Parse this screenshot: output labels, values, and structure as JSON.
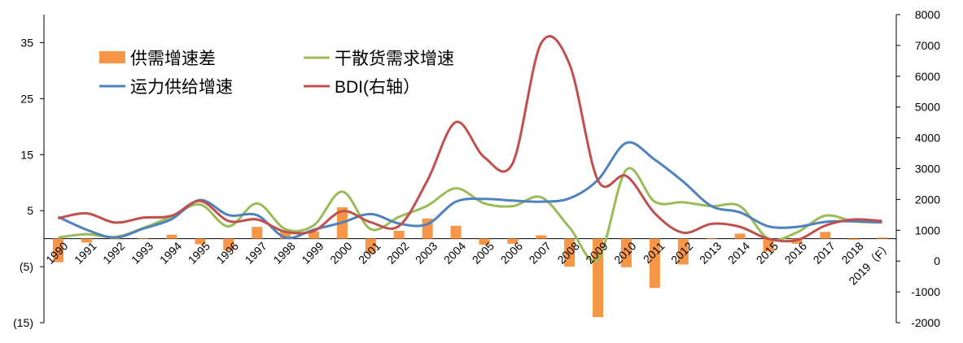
{
  "chart_data": {
    "type": "bar",
    "title": "",
    "categories": [
      "1990",
      "1991",
      "1992",
      "1993",
      "1994",
      "1995",
      "1996",
      "1997",
      "1998",
      "1999",
      "2000",
      "2001",
      "2002",
      "2003",
      "2004",
      "2005",
      "2006",
      "2007",
      "2008",
      "2009",
      "2010",
      "2011",
      "2012",
      "2013",
      "2014",
      "2015",
      "2016",
      "2017",
      "2018",
      "2019（F）"
    ],
    "left_axis": {
      "min": -15,
      "max": 40,
      "ticks": [
        -15,
        -5,
        5,
        15,
        25,
        35
      ],
      "tick_labels": [
        "(15)",
        "(5)",
        "5",
        "15",
        "25",
        "35"
      ]
    },
    "right_axis": {
      "min": -2000,
      "max": 8000,
      "ticks": [
        -2000,
        -1000,
        0,
        1000,
        2000,
        3000,
        4000,
        5000,
        6000,
        7000,
        8000
      ],
      "tick_labels": [
        "-2000",
        "-1000",
        "0",
        "1000",
        "2000",
        "3000",
        "4000",
        "5000",
        "6000",
        "7000",
        "8000"
      ]
    },
    "grid": false,
    "legend_position": "top-left",
    "series": [
      {
        "name": "供需增速差",
        "type": "bar",
        "axis": "left",
        "color": "#F79646",
        "values": [
          -4.2,
          -0.7,
          -0.1,
          0.1,
          0.7,
          -1.0,
          -2.1,
          2.1,
          1.4,
          1.3,
          5.6,
          -2.6,
          1.4,
          3.6,
          2.3,
          -1.1,
          -0.9,
          0.6,
          -5.0,
          -14.0,
          -5.1,
          -8.8,
          -4.6,
          0.1,
          0.9,
          -2.3,
          -0.9,
          1.2,
          -0.2,
          0.2
        ]
      },
      {
        "name": "干散货需求增速",
        "type": "line",
        "axis": "left",
        "color": "#9BBB59",
        "values": [
          0.2,
          0.8,
          0.3,
          1.9,
          4.0,
          6.1,
          2.2,
          6.3,
          1.7,
          2.4,
          8.4,
          1.7,
          3.9,
          5.9,
          9.0,
          6.3,
          5.8,
          7.4,
          2.0,
          -3.7,
          12.3,
          6.6,
          6.5,
          5.8,
          5.8,
          0.0,
          1.1,
          4.1,
          3.1,
          2.9
        ]
      },
      {
        "name": "运力供给增速",
        "type": "line",
        "axis": "left",
        "color": "#4F81BD",
        "values": [
          3.9,
          1.6,
          0.2,
          1.8,
          3.5,
          6.9,
          4.2,
          4.2,
          0.2,
          1.6,
          2.9,
          4.4,
          2.7,
          2.6,
          6.6,
          7.1,
          6.8,
          6.6,
          7.2,
          10.5,
          17.1,
          14.1,
          10.2,
          5.8,
          4.7,
          2.2,
          2.1,
          3.0,
          3.1,
          2.9
        ]
      },
      {
        "name": "BDI(右轴）",
        "type": "line",
        "axis": "right",
        "color": "#C0504D",
        "values": [
          1390,
          1550,
          1250,
          1410,
          1470,
          1950,
          1300,
          1350,
          950,
          980,
          1620,
          1260,
          1140,
          2620,
          4510,
          3370,
          3180,
          7070,
          6390,
          2620,
          2760,
          1550,
          920,
          1210,
          1110,
          720,
          680,
          1150,
          1350,
          1300
        ]
      }
    ]
  }
}
